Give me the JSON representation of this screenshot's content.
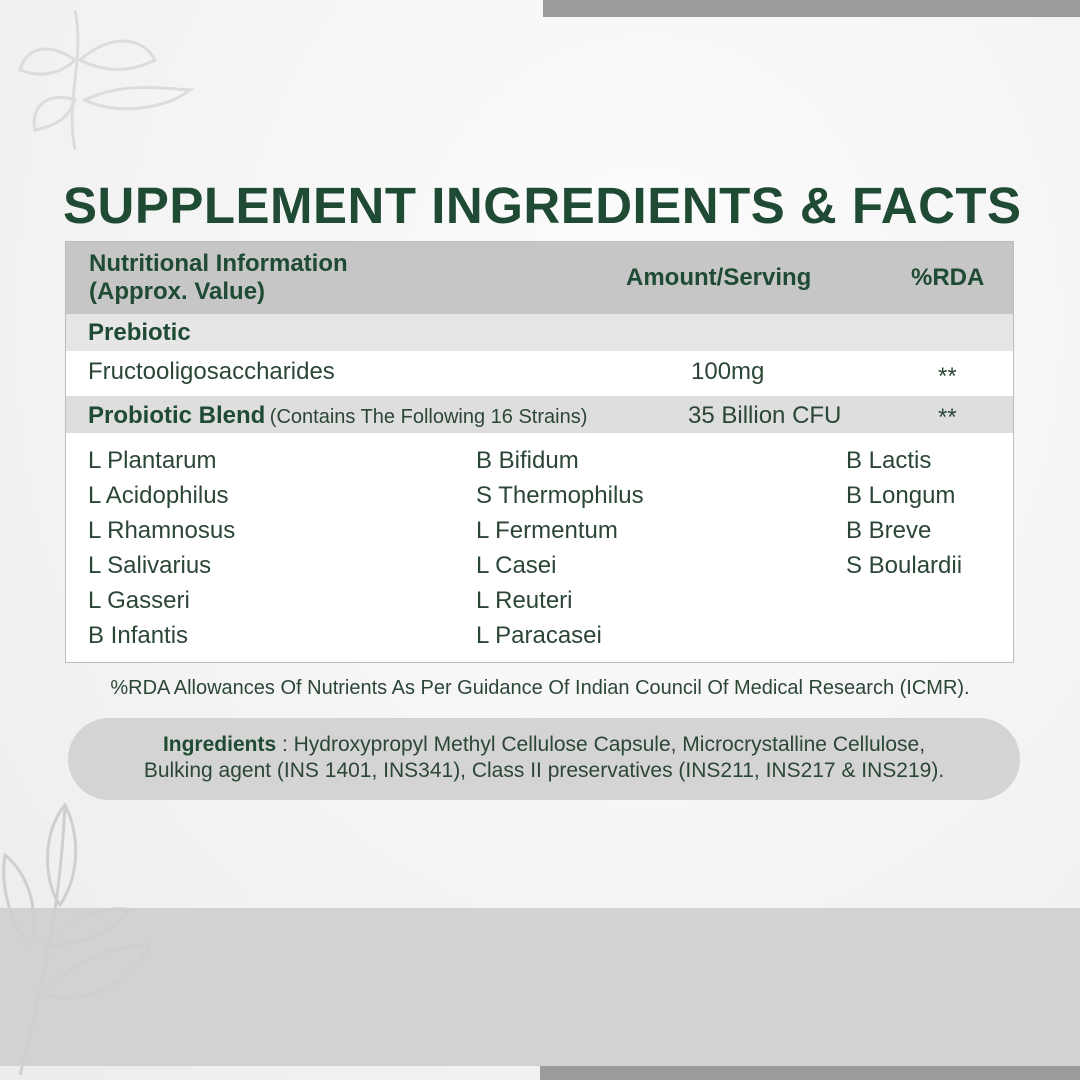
{
  "title": "SUPPLEMENT INGREDIENTS & FACTS",
  "table": {
    "header": {
      "col1_line1": "Nutritional Information",
      "col1_line2": "(Approx. Value)",
      "col2": "Amount/Serving",
      "col3": "%RDA"
    },
    "prebiotic": {
      "label": "Prebiotic"
    },
    "fos": {
      "name": "Fructooligosaccharides",
      "amount": "100mg",
      "rda": "**"
    },
    "probiotic": {
      "label": "Probiotic Blend",
      "note": "(Contains The Following 16 Strains)",
      "amount": "35 Billion CFU",
      "rda": "**"
    },
    "strains": [
      [
        "L Plantarum",
        "L Acidophilus",
        "L Rhamnosus",
        "L Salivarius",
        "L Gasseri",
        "B Infantis"
      ],
      [
        "B Bifidum",
        "S Thermophilus",
        "L Fermentum",
        "L Casei",
        "L Reuteri",
        "L Paracasei"
      ],
      [
        "B Lactis",
        "B Longum",
        "B Breve",
        "S Boulardii"
      ]
    ]
  },
  "footnote": "%RDA Allowances Of Nutrients As Per Guidance Of Indian Council Of Medical Research (ICMR).",
  "ingredients": {
    "label": "Ingredients",
    "line1": " : Hydroxypropyl Methyl Cellulose Capsule, Microcrystalline Cellulose,",
    "line2": "Bulking agent (INS 1401, INS341), Class II preservatives (INS211, INS217 & INS219)."
  },
  "colors": {
    "title": "#1f4a33",
    "header_bg": "#c6c6c6",
    "band": "#d2d2d2"
  }
}
